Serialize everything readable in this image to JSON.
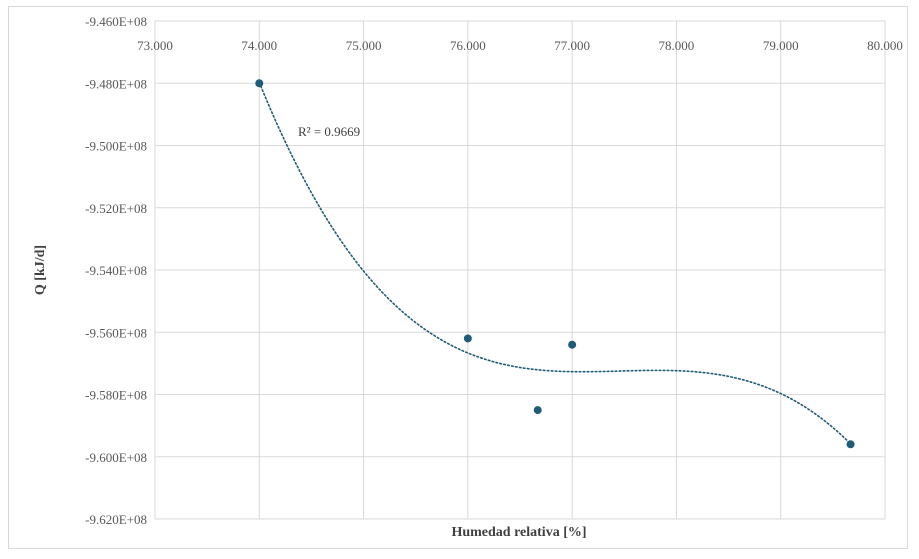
{
  "chart_data": {
    "type": "scatter",
    "title": "",
    "xlabel": "Humedad relativa [%]",
    "ylabel": "Q [kJ/d]",
    "xlim": [
      73,
      80
    ],
    "ylim": [
      -962000000,
      -946000000
    ],
    "x_tick_values": [
      73,
      74,
      75,
      76,
      77,
      78,
      79,
      80
    ],
    "x_tick_labels": [
      "73.000",
      "74.000",
      "75.000",
      "76.000",
      "77.000",
      "78.000",
      "79.000",
      "80.000"
    ],
    "y_tick_values": [
      -946000000,
      -948000000,
      -950000000,
      -952000000,
      -954000000,
      -956000000,
      -958000000,
      -960000000,
      -962000000
    ],
    "y_tick_labels": [
      "-9.460E+08",
      "-9.480E+08",
      "-9.500E+08",
      "-9.520E+08",
      "-9.540E+08",
      "-9.560E+08",
      "-9.580E+08",
      "-9.600E+08",
      "-9.620E+08"
    ],
    "x_axis_position": "top",
    "grid": true,
    "legend": "none",
    "series": [
      {
        "x": [
          74.0,
          76.0,
          76.67,
          77.0,
          79.67
        ],
        "y": [
          -948000000,
          -956200000,
          -958500000,
          -956400000,
          -959600000
        ],
        "color": "#1f5c7a"
      }
    ],
    "trendline": {
      "type": "polynomial",
      "order": 3,
      "style": "dotted",
      "color": "#1f5c7a",
      "x_range": [
        74.0,
        79.67
      ],
      "r_squared_label": "R² = 0.9669"
    }
  }
}
